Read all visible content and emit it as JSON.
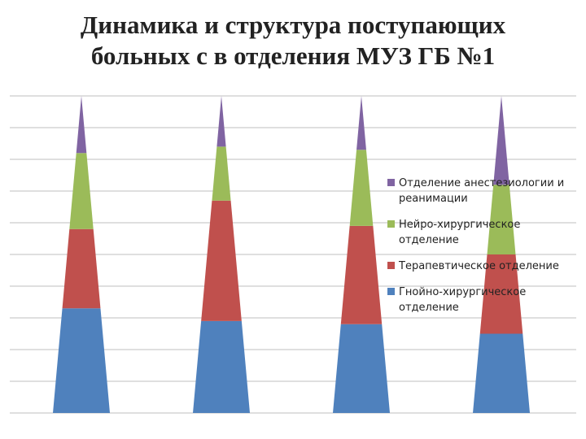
{
  "chart_data": {
    "type": "bar",
    "style": "stacked-cone",
    "title_lines": [
      "Динамика и структура поступающих",
      "больных с в отделения МУЗ ГБ №1"
    ],
    "xlabel": "",
    "ylabel": "",
    "categories": [
      "",
      "",
      "",
      ""
    ],
    "ylim": [
      0,
      100
    ],
    "grid": true,
    "legend_position": "right",
    "series": [
      {
        "name": "Гнойно-хирургическое отделение",
        "legend_lines": [
          "Гнойно-хирургическое",
          "отделение"
        ],
        "color": "#4f81bd",
        "values": [
          33,
          29,
          28,
          25
        ]
      },
      {
        "name": "Терапевтическое отделение",
        "legend_lines": [
          "Терапевтическое отделение"
        ],
        "color": "#c0504d",
        "values": [
          25,
          38,
          31,
          25
        ]
      },
      {
        "name": "Нейро-хирургическое отделение",
        "legend_lines": [
          "Нейро-хирургическое",
          "отделение"
        ],
        "color": "#9bbb59",
        "values": [
          24,
          17,
          24,
          22
        ]
      },
      {
        "name": "Отделение анестезиологии и реанимации",
        "legend_lines": [
          "Отделение анестезиологии и",
          "реанимации"
        ],
        "color": "#8064a2",
        "values": [
          18,
          16,
          17,
          28
        ]
      }
    ]
  }
}
